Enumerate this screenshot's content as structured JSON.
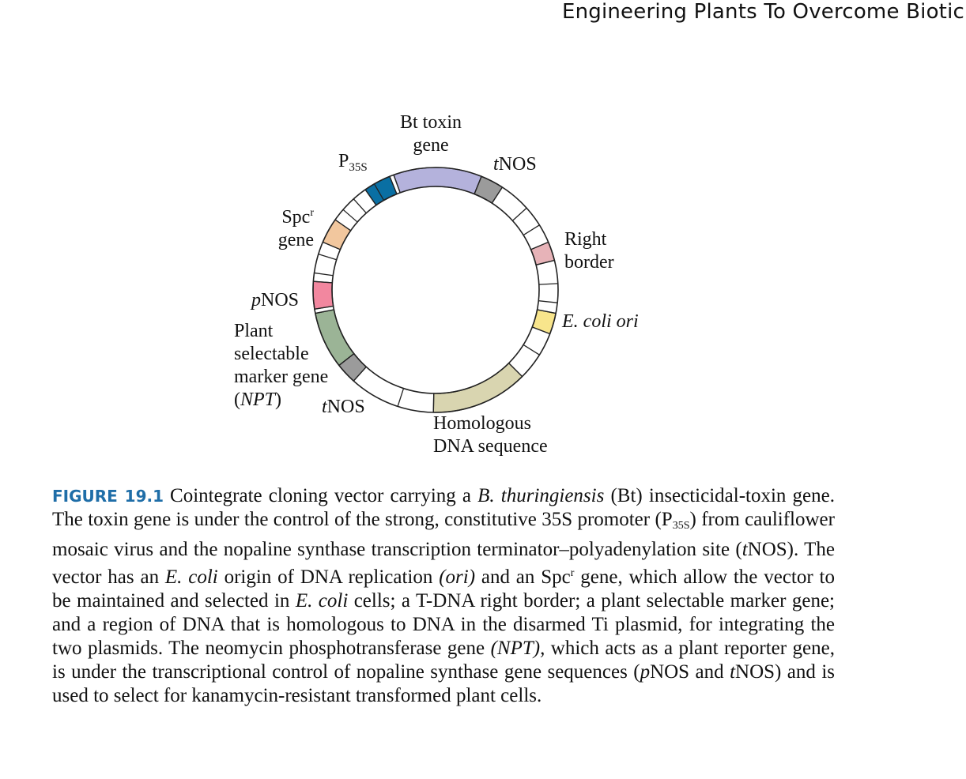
{
  "running_head": "Engineering Plants To Overcome Biotic",
  "diagram": {
    "labels": {
      "bt_toxin_line1": "Bt toxin",
      "bt_toxin_line2": "gene",
      "p35s_main": "P",
      "p35s_sub": "35S",
      "tnos_top_t": "t",
      "tnos_top_rest": "NOS",
      "spc_main": "Spc",
      "spc_sup": "r",
      "spc_line2": "gene",
      "right_border_line1": "Right",
      "right_border_line2": "border",
      "pnos_p": "p",
      "pnos_rest": "NOS",
      "ecoli_ori": "E. coli ori",
      "plant_line1": "Plant",
      "plant_line2": "selectable",
      "plant_line3": "marker gene",
      "plant_line4_open": "(",
      "plant_line4_npt": "NPT",
      "plant_line4_close": ")",
      "tnos_bottom_t": "t",
      "tnos_bottom_rest": "NOS",
      "homologous_line1": "Homologous",
      "homologous_line2": "DNA sequence"
    },
    "segment_colors": {
      "p35s": "#0a6fa3",
      "bt_toxin": "#b4b2dc",
      "tnos_top": "#9b9b9b",
      "right_border": "#e7b3b8",
      "ecoli_ori": "#f8e58c",
      "homologous": "#d9d5b0",
      "tnos_bottom": "#9b9b9b",
      "npt": "#9bb496",
      "pnos": "#f2879f",
      "spc": "#f2c79e"
    }
  },
  "caption": {
    "figure_label": "FIGURE 19.1",
    "p1": "Cointegrate cloning vector carrying a ",
    "p1_italic": "B. thuringiensis",
    "p2": " (Bt) insecticidal-toxin gene. The toxin gene is under the control of the strong, constitutive 35S promoter (P",
    "p2_sub": "35S",
    "p3": ") from cauliflower mosaic virus and the nopaline synthase transcription terminator–polyadenylation site (",
    "p3_italic": "t",
    "p4": "NOS). The vector has an ",
    "p4_italic": "E. coli",
    "p5": " origin of DNA replication ",
    "p5_italic": "(ori)",
    "p6": " and an Spc",
    "p6_sup": "r",
    "p7": " gene, which allow the vector to be maintained and selected in ",
    "p7_italic": "E. coli",
    "p8": " cells; a T-DNA right border; a plant selectable marker gene; and a region of DNA that is homologous to DNA in the disarmed Ti plasmid, for integrating the two plasmids. The neomycin phosphotransferase gene ",
    "p8_italic": "(NPT),",
    "p9": " which acts as a plant reporter gene, is under the transcriptional control of nopaline synthase gene sequences (",
    "p9_italic": "p",
    "p10": "NOS and ",
    "p10_italic": "t",
    "p11": "NOS) and is used to select for kanamycin-resistant transformed plant cells."
  }
}
